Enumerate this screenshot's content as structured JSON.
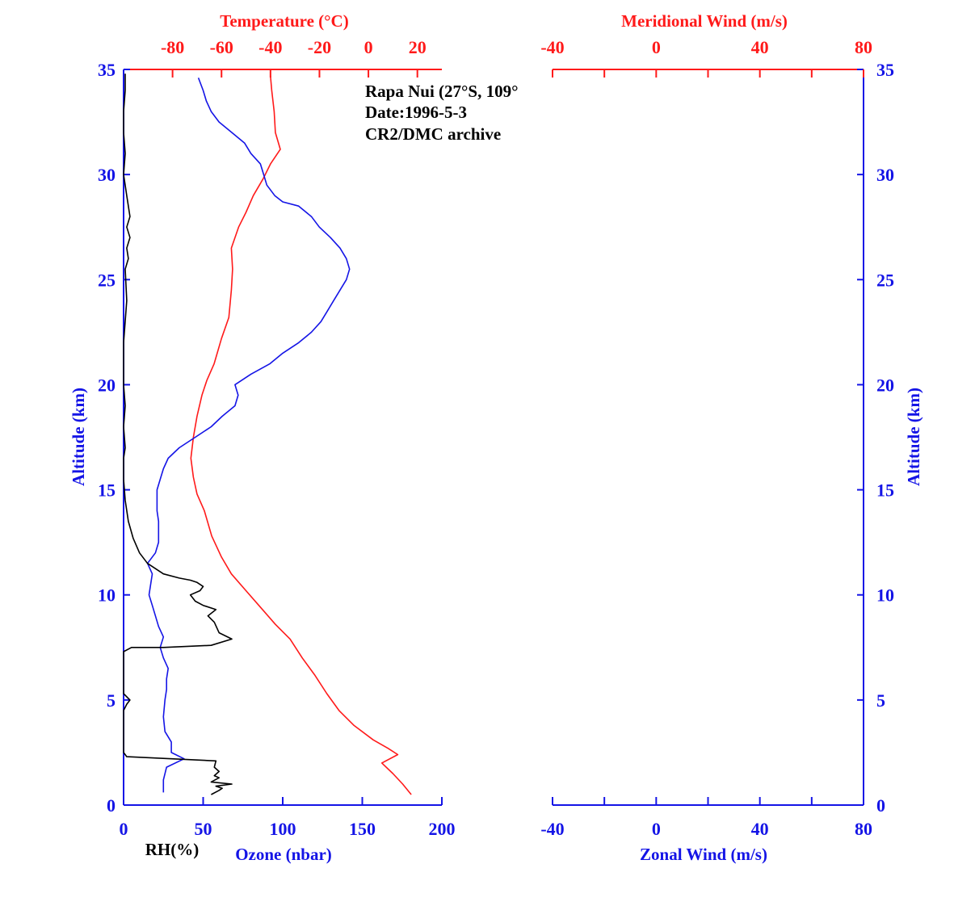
{
  "colors": {
    "blue": "#1414e6",
    "red": "#ff1a1a",
    "black": "#000000"
  },
  "annotation": [
    "Rapa Nui (27°S, 109°",
    "Date:1996-5-3",
    "CR2/DMC archive"
  ],
  "chart_data": [
    {
      "type": "line",
      "title": "",
      "axes": {
        "altitude": {
          "label": "Altitude (km)",
          "range": [
            0,
            35
          ],
          "ticks": [
            "0",
            "5",
            "10",
            "15",
            "20",
            "25",
            "30",
            "35"
          ]
        },
        "temperature": {
          "label": "Temperature (°C)",
          "range": [
            -100,
            30
          ],
          "ticks": [
            "-80",
            "-60",
            "-40",
            "-20",
            "0",
            "20"
          ],
          "position": "top"
        },
        "ozone": {
          "label": "Ozone (nbar)",
          "range": [
            0,
            200
          ],
          "ticks": [
            "0",
            "50",
            "100",
            "150",
            "200"
          ],
          "position": "bottom"
        },
        "rh": {
          "label": "RH(%)",
          "range": [
            0,
            200
          ],
          "position": "bottom"
        }
      },
      "series": [
        {
          "name": "Temperature (°C)",
          "color": "#ff1a1a",
          "axis": "temperature",
          "points": [
            [
              17.5,
              0.5
            ],
            [
              14,
              1
            ],
            [
              10,
              1.5
            ],
            [
              5.5,
              2
            ],
            [
              12,
              2.4
            ],
            [
              8,
              2.7
            ],
            [
              2,
              3.1
            ],
            [
              -6,
              3.8
            ],
            [
              -12,
              4.5
            ],
            [
              -17,
              5.3
            ],
            [
              -22,
              6.2
            ],
            [
              -27,
              7
            ],
            [
              -32,
              7.9
            ],
            [
              -38,
              8.6
            ],
            [
              -44,
              9.4
            ],
            [
              -50,
              10.2
            ],
            [
              -56,
              11
            ],
            [
              -60,
              11.8
            ],
            [
              -64,
              12.8
            ],
            [
              -67,
              14
            ],
            [
              -70,
              14.8
            ],
            [
              -71.5,
              15.6
            ],
            [
              -72.5,
              16.5
            ],
            [
              -71.5,
              17.5
            ],
            [
              -70,
              18.5
            ],
            [
              -68,
              19.5
            ],
            [
              -66,
              20.2
            ],
            [
              -63,
              21
            ],
            [
              -60,
              22.2
            ],
            [
              -57,
              23.2
            ],
            [
              -56,
              24.5
            ],
            [
              -55.5,
              25.5
            ],
            [
              -56,
              26.5
            ],
            [
              -53,
              27.5
            ],
            [
              -50,
              28.2
            ],
            [
              -47,
              29
            ],
            [
              -43,
              29.8
            ],
            [
              -40,
              30.5
            ],
            [
              -36,
              31.2
            ],
            [
              -38,
              32
            ],
            [
              -38.5,
              33
            ],
            [
              -39.5,
              34
            ],
            [
              -40,
              34.7
            ]
          ]
        },
        {
          "name": "Ozone (nbar)",
          "color": "#1414e6",
          "axis": "ozone",
          "points": [
            [
              25,
              0.6
            ],
            [
              25,
              1.2
            ],
            [
              27,
              1.8
            ],
            [
              38,
              2.2
            ],
            [
              30,
              2.5
            ],
            [
              30,
              3
            ],
            [
              26,
              3.5
            ],
            [
              25,
              4.2
            ],
            [
              26,
              5
            ],
            [
              27,
              5.5
            ],
            [
              27,
              6
            ],
            [
              28,
              6.5
            ],
            [
              25,
              7
            ],
            [
              23,
              7.5
            ],
            [
              25,
              8
            ],
            [
              22,
              8.5
            ],
            [
              20,
              9
            ],
            [
              18,
              9.5
            ],
            [
              16,
              10
            ],
            [
              17,
              10.5
            ],
            [
              18,
              11
            ],
            [
              15,
              11.5
            ],
            [
              20,
              12
            ],
            [
              22,
              12.5
            ],
            [
              22,
              13.5
            ],
            [
              21,
              14
            ],
            [
              21,
              15
            ],
            [
              23,
              15.5
            ],
            [
              25,
              16
            ],
            [
              28,
              16.5
            ],
            [
              35,
              17
            ],
            [
              45,
              17.5
            ],
            [
              55,
              18
            ],
            [
              62,
              18.5
            ],
            [
              70,
              19
            ],
            [
              72,
              19.5
            ],
            [
              70,
              20
            ],
            [
              80,
              20.5
            ],
            [
              92,
              21
            ],
            [
              100,
              21.5
            ],
            [
              110,
              22
            ],
            [
              118,
              22.5
            ],
            [
              124,
              23
            ],
            [
              128,
              23.5
            ],
            [
              132,
              24
            ],
            [
              136,
              24.5
            ],
            [
              140,
              25
            ],
            [
              142,
              25.5
            ],
            [
              140,
              26
            ],
            [
              136,
              26.5
            ],
            [
              130,
              27
            ],
            [
              123,
              27.5
            ],
            [
              118,
              28
            ],
            [
              110,
              28.5
            ],
            [
              100,
              28.7
            ],
            [
              95,
              29
            ],
            [
              90,
              29.5
            ],
            [
              88,
              30
            ],
            [
              86,
              30.5
            ],
            [
              80,
              31
            ],
            [
              76,
              31.5
            ],
            [
              68,
              32
            ],
            [
              60,
              32.5
            ],
            [
              55,
              33
            ],
            [
              52,
              33.5
            ],
            [
              50,
              34
            ],
            [
              47,
              34.6
            ]
          ]
        },
        {
          "name": "RH(%)",
          "color": "#000000",
          "axis": "rh",
          "points": [
            [
              55,
              0.5
            ],
            [
              60,
              0.7
            ],
            [
              62,
              0.8
            ],
            [
              58,
              0.9
            ],
            [
              68,
              1
            ],
            [
              55,
              1.1
            ],
            [
              60,
              1.3
            ],
            [
              57,
              1.4
            ],
            [
              60,
              1.6
            ],
            [
              57,
              1.8
            ],
            [
              58,
              2.1
            ],
            [
              2,
              2.3
            ],
            [
              0,
              2.5
            ],
            [
              0,
              4.5
            ],
            [
              2,
              4.8
            ],
            [
              4,
              5
            ],
            [
              0,
              5.3
            ],
            [
              0,
              6
            ],
            [
              0,
              7.3
            ],
            [
              5,
              7.5
            ],
            [
              25,
              7.5
            ],
            [
              55,
              7.6
            ],
            [
              68,
              7.9
            ],
            [
              60,
              8.2
            ],
            [
              57,
              8.7
            ],
            [
              53,
              9
            ],
            [
              58,
              9.3
            ],
            [
              50,
              9.5
            ],
            [
              45,
              9.7
            ],
            [
              42,
              10
            ],
            [
              48,
              10.2
            ],
            [
              50,
              10.4
            ],
            [
              46,
              10.6
            ],
            [
              42,
              10.7
            ],
            [
              35,
              10.8
            ],
            [
              25,
              11
            ],
            [
              15,
              11.5
            ],
            [
              10,
              12
            ],
            [
              6,
              12.7
            ],
            [
              3,
              13.5
            ],
            [
              1,
              14.5
            ],
            [
              0,
              15.5
            ],
            [
              0,
              16.5
            ],
            [
              1,
              17
            ],
            [
              0,
              18
            ],
            [
              1,
              19
            ],
            [
              0,
              20
            ],
            [
              0,
              22
            ],
            [
              2,
              24
            ],
            [
              1,
              25.5
            ],
            [
              3,
              26
            ],
            [
              2,
              26.5
            ],
            [
              4,
              27
            ],
            [
              2,
              27.5
            ],
            [
              4,
              28
            ],
            [
              3,
              28.5
            ],
            [
              2,
              29
            ],
            [
              0,
              30
            ],
            [
              1,
              31
            ],
            [
              0,
              32
            ],
            [
              0,
              33
            ],
            [
              1,
              34
            ],
            [
              1,
              34.8
            ]
          ]
        }
      ]
    },
    {
      "type": "line",
      "title": "",
      "axes": {
        "altitude": {
          "label": "Altitude (km)",
          "range": [
            0,
            35
          ],
          "ticks": [
            "0",
            "5",
            "10",
            "15",
            "20",
            "25",
            "30",
            "35"
          ]
        },
        "zonal": {
          "label": "Zonal Wind (m/s)",
          "range": [
            -40,
            80
          ],
          "ticks": [
            "-40",
            "0",
            "40",
            "80"
          ],
          "position": "bottom"
        },
        "meridional": {
          "label": "Meridional Wind (m/s)",
          "range": [
            -40,
            80
          ],
          "ticks": [
            "-40",
            "0",
            "40",
            "80"
          ],
          "position": "top"
        }
      },
      "series": []
    }
  ]
}
